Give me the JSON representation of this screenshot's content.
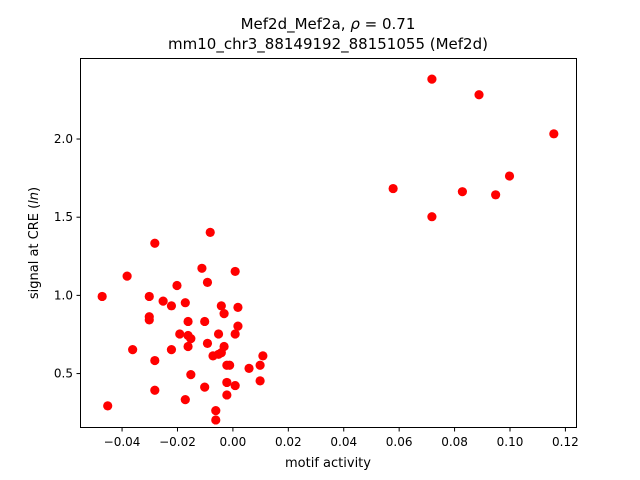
{
  "chart_data": {
    "type": "scatter",
    "title_line1_prefix": "Mef2d_Mef2a, ",
    "title_line1_rho": "ρ",
    "title_line1_suffix": " = 0.71",
    "title_line2": "mm10_chr3_88149192_88151055 (Mef2d)",
    "xlabel": "motif activity",
    "ylabel_prefix": "signal at CRE (",
    "ylabel_italic": "ln",
    "ylabel_suffix": ")",
    "xlim": [
      -0.055,
      0.124
    ],
    "ylim": [
      0.155,
      2.515
    ],
    "x_ticks": [
      -0.04,
      -0.02,
      0.0,
      0.02,
      0.04,
      0.06,
      0.08,
      0.1,
      0.12
    ],
    "x_tick_labels": [
      "−0.04",
      "−0.02",
      "0.00",
      "0.02",
      "0.04",
      "0.06",
      "0.08",
      "0.10",
      "0.12"
    ],
    "y_ticks": [
      0.5,
      1.0,
      1.5,
      2.0
    ],
    "y_tick_labels": [
      "0.5",
      "1.0",
      "1.5",
      "2.0"
    ],
    "marker_color": "#ff0000",
    "grid": false,
    "points": [
      [
        -0.047,
        0.99
      ],
      [
        -0.045,
        0.29
      ],
      [
        -0.038,
        1.12
      ],
      [
        -0.036,
        0.65
      ],
      [
        -0.03,
        0.99
      ],
      [
        -0.03,
        0.86
      ],
      [
        -0.03,
        0.84
      ],
      [
        -0.028,
        1.33
      ],
      [
        -0.028,
        0.58
      ],
      [
        -0.028,
        0.39
      ],
      [
        -0.025,
        0.96
      ],
      [
        -0.022,
        0.93
      ],
      [
        -0.022,
        0.65
      ],
      [
        -0.02,
        1.06
      ],
      [
        -0.019,
        0.75
      ],
      [
        -0.017,
        0.95
      ],
      [
        -0.017,
        0.33
      ],
      [
        -0.016,
        0.83
      ],
      [
        -0.016,
        0.74
      ],
      [
        -0.016,
        0.67
      ],
      [
        -0.015,
        0.72
      ],
      [
        -0.015,
        0.49
      ],
      [
        -0.011,
        1.17
      ],
      [
        -0.01,
        0.83
      ],
      [
        -0.01,
        0.41
      ],
      [
        -0.009,
        1.08
      ],
      [
        -0.009,
        0.69
      ],
      [
        -0.008,
        1.4
      ],
      [
        -0.007,
        0.61
      ],
      [
        -0.006,
        0.26
      ],
      [
        -0.006,
        0.2
      ],
      [
        -0.005,
        0.75
      ],
      [
        -0.005,
        0.62
      ],
      [
        -0.004,
        0.93
      ],
      [
        -0.004,
        0.63
      ],
      [
        -0.003,
        0.88
      ],
      [
        -0.003,
        0.67
      ],
      [
        -0.002,
        0.55
      ],
      [
        -0.002,
        0.44
      ],
      [
        -0.002,
        0.36
      ],
      [
        -0.001,
        0.55
      ],
      [
        0.001,
        1.15
      ],
      [
        0.001,
        0.75
      ],
      [
        0.001,
        0.42
      ],
      [
        0.002,
        0.92
      ],
      [
        0.002,
        0.8
      ],
      [
        0.006,
        0.53
      ],
      [
        0.01,
        0.55
      ],
      [
        0.01,
        0.45
      ],
      [
        0.011,
        0.61
      ],
      [
        0.058,
        1.68
      ],
      [
        0.072,
        2.38
      ],
      [
        0.072,
        1.5
      ],
      [
        0.083,
        1.66
      ],
      [
        0.089,
        2.28
      ],
      [
        0.095,
        1.64
      ],
      [
        0.1,
        1.76
      ],
      [
        0.116,
        2.03
      ]
    ]
  }
}
